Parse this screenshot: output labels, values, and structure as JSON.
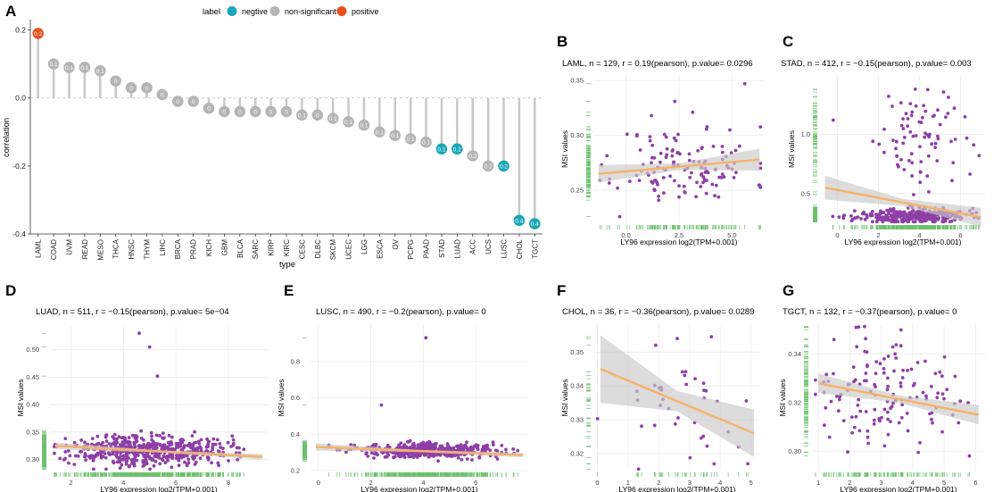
{
  "colors": {
    "negative": "#1aa6b7",
    "non_significant": "#b5b5b5",
    "positive": "#e8501e",
    "point": "#8e3fa6",
    "fit": "#f6b26b",
    "band": "#c9c9c9",
    "rug": "#6cc16c",
    "grid": "#ececec"
  },
  "chart_data": [
    {
      "panel_label": "A",
      "type": "lollipop",
      "title": "",
      "xlabel": "type",
      "ylabel": "correlation",
      "ylim": [
        -0.4,
        0.22
      ],
      "yticks": [
        "-0.4",
        "-0.2",
        "0.0",
        "0.2"
      ],
      "ytick_values": [
        -0.4,
        -0.2,
        0.0,
        0.2
      ],
      "legend": {
        "title": "label",
        "items": [
          {
            "name": "negtive",
            "color_key": "negative"
          },
          {
            "name": "non-significant",
            "color_key": "non_significant"
          },
          {
            "name": "positive",
            "color_key": "positive"
          }
        ]
      },
      "categories": [
        "LAML",
        "COAD",
        "UVM",
        "READ",
        "MESO",
        "THCA",
        "HNSC",
        "THYM",
        "LIHC",
        "BRCA",
        "PRAD",
        "KICH",
        "GBM",
        "BLCA",
        "SARC",
        "KIRP",
        "KIRC",
        "CESC",
        "DLBC",
        "SKCM",
        "UCEC",
        "LGG",
        "ESCA",
        "OV",
        "PCPG",
        "PAAD",
        "STAD",
        "LUAD",
        "ACC",
        "UCS",
        "LUSC",
        "CHOL",
        "TGCT"
      ],
      "values": [
        0.19,
        0.1,
        0.09,
        0.09,
        0.08,
        0.05,
        0.03,
        0.03,
        0.01,
        -0.01,
        -0.01,
        -0.03,
        -0.04,
        -0.04,
        -0.04,
        -0.04,
        -0.04,
        -0.05,
        -0.05,
        -0.06,
        -0.07,
        -0.08,
        -0.1,
        -0.11,
        -0.12,
        -0.13,
        -0.15,
        -0.15,
        -0.17,
        -0.2,
        -0.2,
        -0.36,
        -0.37
      ],
      "point_labels": [
        "0.2",
        "0.1",
        "0.1",
        "0.1",
        "0.1",
        "0",
        "0",
        "0",
        "0",
        "0",
        "0",
        "0",
        "0",
        "0",
        "0",
        "0",
        "0",
        "0.1",
        "0",
        "0.1",
        "0.1",
        "0.1",
        "0.1",
        "0.1",
        "0.1",
        "0.1",
        "0.1",
        "0.2",
        "0.2",
        "0.2",
        "0.2",
        "0.4",
        "0.4"
      ],
      "significance": [
        "positive",
        "ns",
        "ns",
        "ns",
        "ns",
        "ns",
        "ns",
        "ns",
        "ns",
        "ns",
        "ns",
        "ns",
        "ns",
        "ns",
        "ns",
        "ns",
        "ns",
        "ns",
        "ns",
        "ns",
        "ns",
        "ns",
        "ns",
        "ns",
        "ns",
        "ns",
        "negative",
        "negative",
        "ns",
        "ns",
        "negative",
        "negative",
        "negative"
      ]
    },
    {
      "panel_label": "B",
      "type": "scatter",
      "title": "LAML, n = 129, r = 0.19(pearson), p.value= 0.0296",
      "xlabel": "LY96 expression log2(TPM+0.001)",
      "ylabel": "MSI values",
      "xlim": [
        -1.5,
        6.5
      ],
      "ylim": [
        0.22,
        0.355
      ],
      "xticks": [
        "0.0",
        "2.5",
        "5.0"
      ],
      "xtick_values": [
        0,
        2.5,
        5
      ],
      "yticks": [
        "0.25",
        "0.30",
        "0.35"
      ],
      "ytick_values": [
        0.25,
        0.3,
        0.35
      ],
      "fit": [
        [
          -1.3,
          0.265
        ],
        [
          6.3,
          0.278
        ]
      ],
      "band": [
        0.008,
        0.003,
        0.01
      ],
      "cloud": {
        "n": 129,
        "x_center": 2.8,
        "x_spread": 1.6,
        "y_center": 0.272,
        "y_spread": 0.018,
        "seed": 11
      },
      "outliers": [
        [
          5.6,
          0.347
        ],
        [
          -0.3,
          0.226
        ],
        [
          2.3,
          0.331
        ],
        [
          1.2,
          0.318
        ],
        [
          4.9,
          0.305
        ]
      ]
    },
    {
      "panel_label": "C",
      "type": "scatter",
      "title": "STAD, n = 412, r = −0.15(pearson), p.value= 0.003",
      "xlabel": "LY96 expression log2(TPM+0.001)",
      "ylabel": "MSI values",
      "xlim": [
        -0.8,
        7.2
      ],
      "ylim": [
        0.25,
        1.5
      ],
      "xticks": [
        "0",
        "2",
        "4",
        "6"
      ],
      "xtick_values": [
        0,
        2,
        4,
        6
      ],
      "yticks": [
        "0.5",
        "1.0"
      ],
      "ytick_values": [
        0.5,
        1.0
      ],
      "fit": [
        [
          -0.6,
          0.55
        ],
        [
          7.0,
          0.3
        ]
      ],
      "band": [
        0.1,
        0.03,
        0.08
      ],
      "cloud": {
        "n": 330,
        "x_center": 3.6,
        "x_spread": 1.3,
        "y_center": 0.31,
        "y_spread": 0.03,
        "seed": 23
      },
      "cloud2": {
        "n": 80,
        "x_center": 4.0,
        "x_spread": 1.1,
        "y_center": 0.95,
        "y_spread": 0.22,
        "seed": 29
      },
      "outliers": [
        [
          -0.2,
          1.12
        ],
        [
          2.5,
          1.32
        ],
        [
          3.8,
          1.38
        ],
        [
          5.7,
          1.22
        ]
      ]
    },
    {
      "panel_label": "D",
      "type": "scatter",
      "title": "LUAD, n = 511, r = −0.15(pearson), p.value= 5e−04",
      "xlabel": "LY96 expression log2(TPM+0.001)",
      "ylabel": "MSI values",
      "xlim": [
        1.2,
        9.5
      ],
      "ylim": [
        0.28,
        0.545
      ],
      "xticks": [
        "2",
        "4",
        "6",
        "8"
      ],
      "xtick_values": [
        2,
        4,
        6,
        8
      ],
      "yticks": [
        "0.30",
        "0.35",
        "0.40",
        "0.45",
        "0.50"
      ],
      "ytick_values": [
        0.3,
        0.35,
        0.4,
        0.45,
        0.5
      ],
      "fit": [
        [
          1.4,
          0.325
        ],
        [
          9.3,
          0.305
        ]
      ],
      "band": [
        0.006,
        0.002,
        0.005
      ],
      "cloud": {
        "n": 505,
        "x_center": 5.0,
        "x_spread": 1.5,
        "y_center": 0.318,
        "y_spread": 0.014,
        "seed": 37
      },
      "outliers": [
        [
          4.6,
          0.53
        ],
        [
          5.0,
          0.505
        ],
        [
          5.3,
          0.452
        ]
      ]
    },
    {
      "panel_label": "E",
      "type": "scatter",
      "title": "LUSC, n = 490, r = −0.2(pearson), p.value= 0",
      "xlabel": "LY96 expression log2(TPM+0.001)",
      "ylabel": "MSI values",
      "xlim": [
        -0.3,
        8.0
      ],
      "ylim": [
        0.2,
        1.0
      ],
      "xticks": [
        "0",
        "2",
        "4",
        "6"
      ],
      "xtick_values": [
        0,
        2,
        4,
        6
      ],
      "yticks": [
        "0.2",
        "0.4",
        "0.6",
        "0.8"
      ],
      "ytick_values": [
        0.2,
        0.4,
        0.6,
        0.8
      ],
      "fit": [
        [
          -0.1,
          0.33
        ],
        [
          7.8,
          0.285
        ]
      ],
      "band": [
        0.02,
        0.006,
        0.012
      ],
      "cloud": {
        "n": 485,
        "x_center": 4.2,
        "x_spread": 1.3,
        "y_center": 0.31,
        "y_spread": 0.02,
        "seed": 41
      },
      "outliers": [
        [
          4.1,
          0.93
        ],
        [
          2.4,
          0.56
        ],
        [
          0.4,
          0.34
        ]
      ]
    },
    {
      "panel_label": "F",
      "type": "scatter",
      "title": "CHOL, n = 36, r = −0.36(pearson), p.value= 0.0289",
      "xlabel": "LY96 expression log2(TPM+0.001)",
      "ylabel": "MSI values",
      "xlim": [
        -0.1,
        5.3
      ],
      "ylim": [
        0.315,
        0.358
      ],
      "xticks": [
        "0",
        "1",
        "2",
        "3",
        "4",
        "5"
      ],
      "xtick_values": [
        0,
        1,
        2,
        3,
        4,
        5
      ],
      "yticks": [
        "0.32",
        "0.33",
        "0.34",
        "0.35"
      ],
      "ytick_values": [
        0.32,
        0.33,
        0.34,
        0.35
      ],
      "fit": [
        [
          0.1,
          0.345
        ],
        [
          5.1,
          0.326
        ]
      ],
      "band": [
        0.01,
        0.003,
        0.007
      ],
      "cloud": {
        "n": 36,
        "x_center": 2.9,
        "x_spread": 1.2,
        "y_center": 0.335,
        "y_spread": 0.009,
        "seed": 53
      },
      "outliers": [
        [
          4.9,
          0.317
        ],
        [
          2.6,
          0.354
        ],
        [
          1.9,
          0.352
        ]
      ]
    },
    {
      "panel_label": "G",
      "type": "scatter",
      "title": "TGCT, n = 132, r = −0.37(pearson), p.value= 0",
      "xlabel": "LY96 expression log2(TPM+0.001)",
      "ylabel": "MSI values",
      "xlim": [
        0.8,
        6.3
      ],
      "ylim": [
        0.292,
        0.352
      ],
      "xticks": [
        "1",
        "2",
        "3",
        "4",
        "5",
        "6"
      ],
      "xtick_values": [
        1,
        2,
        3,
        4,
        5,
        6
      ],
      "yticks": [
        "0.30",
        "0.32",
        "0.34"
      ],
      "ytick_values": [
        0.3,
        0.32,
        0.34
      ],
      "fit": [
        [
          1.0,
          0.328
        ],
        [
          6.1,
          0.315
        ]
      ],
      "band": [
        0.004,
        0.0015,
        0.004
      ],
      "cloud": {
        "n": 132,
        "x_center": 3.1,
        "x_spread": 1.1,
        "y_center": 0.322,
        "y_spread": 0.011,
        "seed": 67
      },
      "outliers": [
        [
          2.2,
          0.351
        ],
        [
          5.8,
          0.298
        ],
        [
          1.5,
          0.346
        ]
      ]
    }
  ]
}
